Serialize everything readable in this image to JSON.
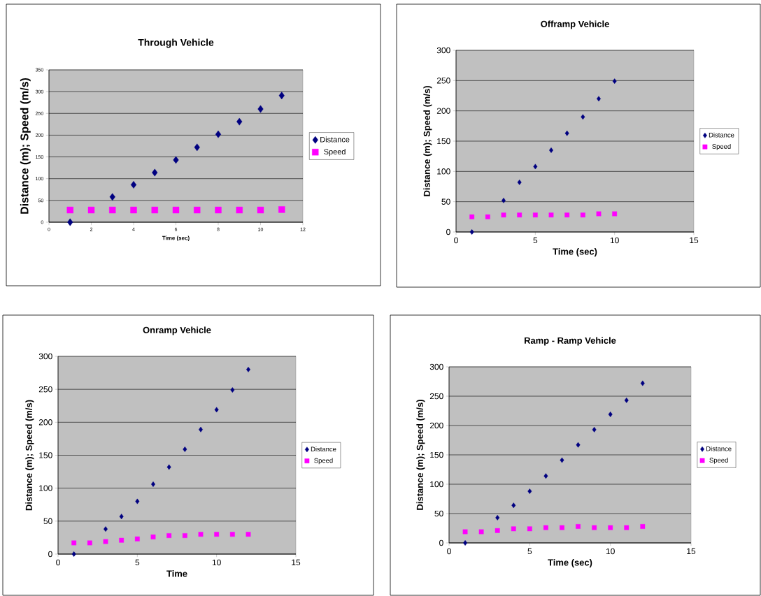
{
  "chart_data": [
    {
      "type": "scatter",
      "title": "Through Vehicle",
      "xlabel": "Time (sec)",
      "ylabel": "Distance (m); Speed (m/s)",
      "x": [
        1,
        2,
        3,
        4,
        5,
        6,
        7,
        8,
        9,
        10,
        11
      ],
      "xlim": [
        0,
        12
      ],
      "ylim": [
        0,
        350
      ],
      "xticks": [
        0,
        2,
        4,
        6,
        8,
        10,
        12
      ],
      "yticks": [
        0,
        50,
        100,
        150,
        200,
        250,
        300,
        350
      ],
      "grid": "y",
      "legend": "right",
      "series": [
        {
          "name": "Distance",
          "color": "#000080",
          "marker": "diamond",
          "values": [
            0,
            null,
            58,
            86,
            114,
            143,
            172,
            202,
            231,
            260,
            291
          ]
        },
        {
          "name": "Speed",
          "color": "#ff00ff",
          "marker": "square",
          "values": [
            28,
            28,
            28,
            28,
            28,
            28,
            28,
            28,
            28,
            28,
            29
          ]
        }
      ]
    },
    {
      "type": "scatter",
      "title": "Offramp Vehicle",
      "xlabel": "Time (sec)",
      "ylabel": "Distance (m); Speed (m/s)",
      "x": [
        1,
        2,
        3,
        4,
        5,
        6,
        7,
        8,
        9,
        10
      ],
      "xlim": [
        0,
        15
      ],
      "ylim": [
        0,
        300
      ],
      "xticks": [
        0,
        5,
        10,
        15
      ],
      "yticks": [
        0,
        50,
        100,
        150,
        200,
        250,
        300
      ],
      "grid": "y",
      "legend": "right",
      "series": [
        {
          "name": "Distance",
          "color": "#000080",
          "marker": "diamond",
          "values": [
            0,
            null,
            52,
            82,
            108,
            135,
            163,
            190,
            220,
            249
          ]
        },
        {
          "name": "Speed",
          "color": "#ff00ff",
          "marker": "square",
          "values": [
            25,
            25,
            28,
            28,
            28,
            28,
            28,
            28,
            30,
            30
          ]
        }
      ]
    },
    {
      "type": "scatter",
      "title": "Onramp Vehicle",
      "xlabel": "Time",
      "ylabel": "Distance (m); Speed (m/s)",
      "x": [
        1,
        2,
        3,
        4,
        5,
        6,
        7,
        8,
        9,
        10,
        11,
        12
      ],
      "xlim": [
        0,
        15
      ],
      "ylim": [
        0,
        300
      ],
      "xticks": [
        0,
        5,
        10,
        15
      ],
      "yticks": [
        0,
        50,
        100,
        150,
        200,
        250,
        300
      ],
      "grid": "y",
      "legend": "right",
      "series": [
        {
          "name": "Distance",
          "color": "#000080",
          "marker": "diamond",
          "values": [
            0,
            null,
            38,
            57,
            80,
            106,
            132,
            159,
            189,
            219,
            249,
            280
          ]
        },
        {
          "name": "Speed",
          "color": "#ff00ff",
          "marker": "square",
          "values": [
            17,
            17,
            19,
            21,
            23,
            26,
            28,
            28,
            30,
            30,
            30,
            30
          ]
        }
      ]
    },
    {
      "type": "scatter",
      "title": "Ramp - Ramp Vehicle",
      "xlabel": "Time (sec)",
      "ylabel": "Distance (m); Speed (m/s)",
      "x": [
        1,
        2,
        3,
        4,
        5,
        6,
        7,
        8,
        9,
        10,
        11,
        12
      ],
      "xlim": [
        0,
        15
      ],
      "ylim": [
        0,
        300
      ],
      "xticks": [
        0,
        5,
        10,
        15
      ],
      "yticks": [
        0,
        50,
        100,
        150,
        200,
        250,
        300
      ],
      "grid": "y",
      "legend": "right",
      "series": [
        {
          "name": "Distance",
          "color": "#000080",
          "marker": "diamond",
          "values": [
            0,
            null,
            43,
            64,
            88,
            114,
            141,
            167,
            193,
            219,
            243,
            272
          ]
        },
        {
          "name": "Speed",
          "color": "#ff00ff",
          "marker": "square",
          "values": [
            19,
            19,
            21,
            24,
            24,
            26,
            26,
            28,
            26,
            26,
            26,
            28
          ]
        }
      ]
    }
  ]
}
